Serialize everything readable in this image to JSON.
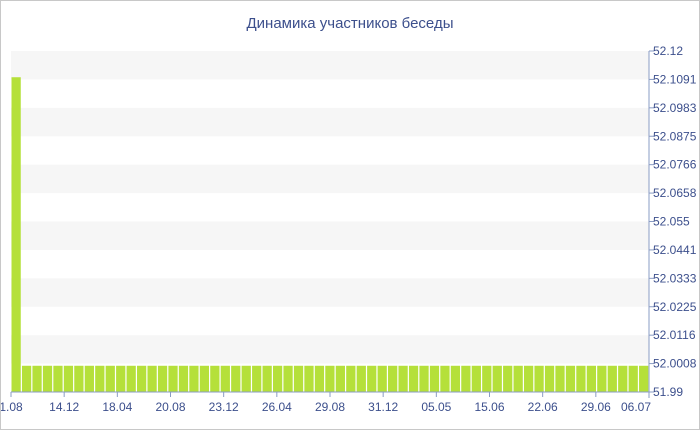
{
  "chart_data": {
    "type": "bar",
    "title": "Динамика участников беседы",
    "xlabel": "",
    "ylabel": "",
    "ylim": [
      51.99,
      52.12
    ],
    "y_ticks": [
      "52.12",
      "52.1091",
      "52.0983",
      "52.0875",
      "52.0766",
      "52.0658",
      "52.055",
      "52.0441",
      "52.0333",
      "52.0225",
      "52.0116",
      "52.0008",
      "51.99"
    ],
    "x_ticks": [
      "1.08",
      "14.12",
      "18.04",
      "20.08",
      "23.12",
      "26.04",
      "29.08",
      "31.12",
      "05.05",
      "15.06",
      "22.06",
      "29.06",
      "06.07"
    ],
    "first_value": 52.11,
    "baseline_value": 52.0,
    "bar_count": 61,
    "bar_color": "#b5e03a",
    "band_color": "#f6f6f6"
  }
}
